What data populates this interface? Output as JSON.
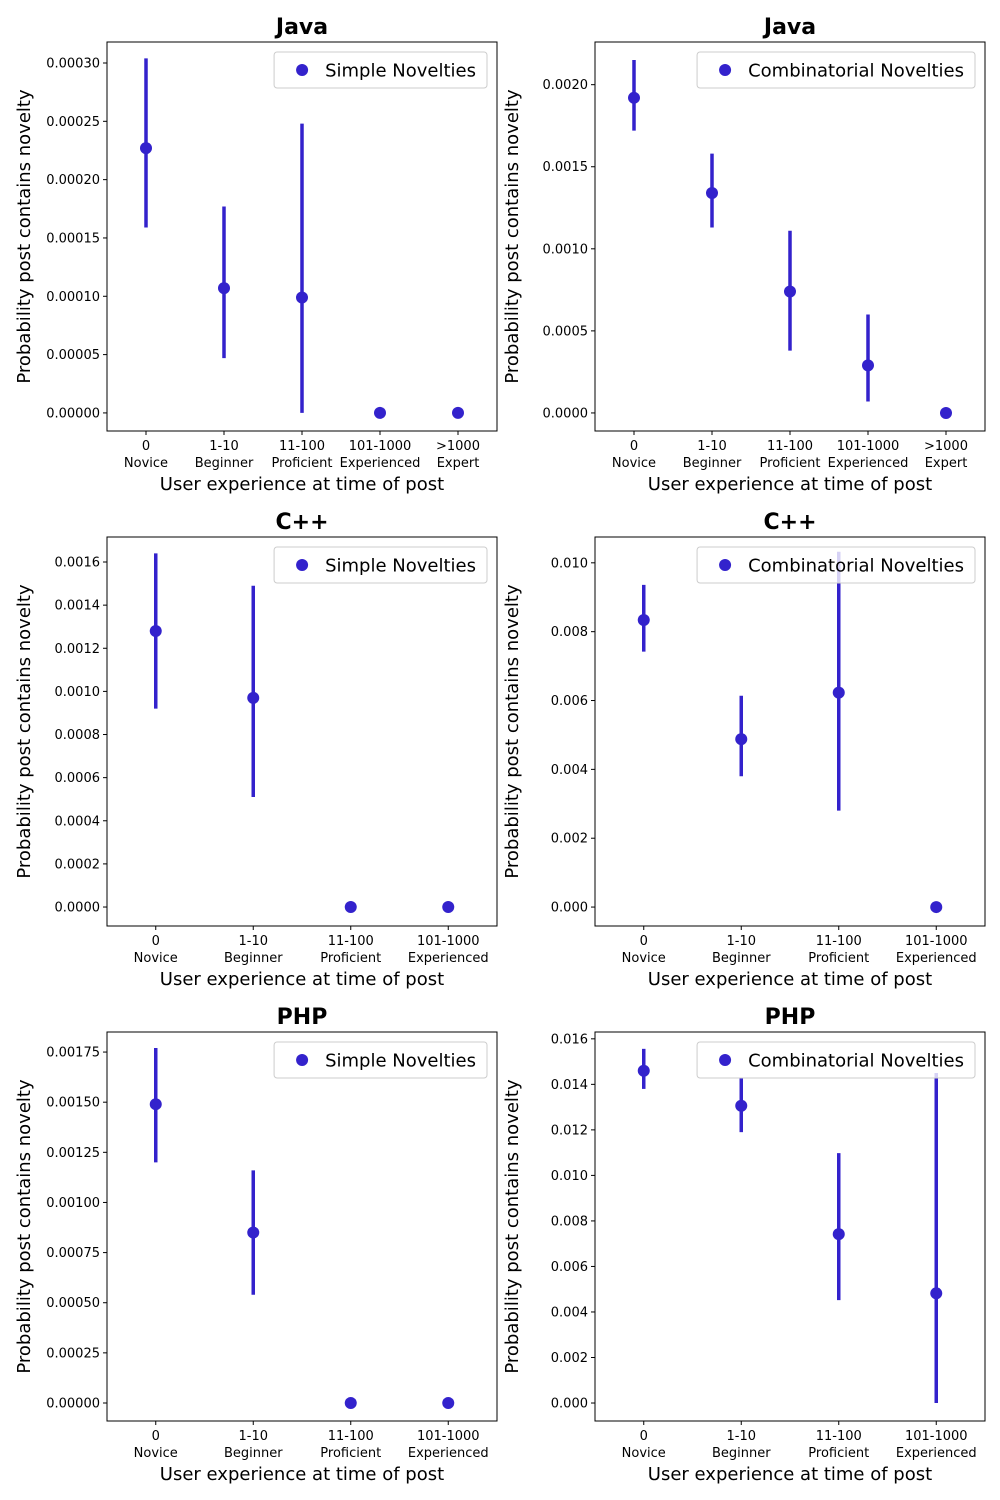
{
  "chart_data": [
    {
      "type": "point",
      "title": "Java",
      "xlabel": "User experience at time of post",
      "ylabel": "Probability post contains novelty",
      "categories": [
        [
          "0",
          "Novice"
        ],
        [
          "1-10",
          "Beginner"
        ],
        [
          "11-100",
          "Proficient"
        ],
        [
          "101-1000",
          "Experienced"
        ],
        [
          ">1000",
          "Expert"
        ]
      ],
      "series": [
        {
          "name": "Simple Novelties",
          "color": "#3322cc",
          "values": [
            0.000227,
            0.000107,
            9.9e-05,
            0,
            0
          ],
          "ci_low": [
            0.000159,
            4.7e-05,
            0,
            null,
            null
          ],
          "ci_high": [
            0.000304,
            0.000177,
            0.000248,
            null,
            null
          ]
        }
      ],
      "ylim": [
        -1.55e-05,
        0.000318
      ],
      "yticks": [
        {
          "value": 0,
          "label": "0.00000"
        },
        {
          "value": 5e-05,
          "label": "0.00005"
        },
        {
          "value": 0.0001,
          "label": "0.00010"
        },
        {
          "value": 0.00015,
          "label": "0.00015"
        },
        {
          "value": 0.0002,
          "label": "0.00020"
        },
        {
          "value": 0.00025,
          "label": "0.00025"
        },
        {
          "value": 0.0003,
          "label": "0.00030"
        }
      ],
      "legend": "upper right"
    },
    {
      "type": "point",
      "title": "Java",
      "xlabel": "User experience at time of post",
      "ylabel": "Probability post contains novelty",
      "categories": [
        [
          "0",
          "Novice"
        ],
        [
          "1-10",
          "Beginner"
        ],
        [
          "11-100",
          "Proficient"
        ],
        [
          "101-1000",
          "Experienced"
        ],
        [
          ">1000",
          "Expert"
        ]
      ],
      "series": [
        {
          "name": "Combinatorial Novelties",
          "color": "#3322cc",
          "values": [
            0.00192,
            0.00134,
            0.00074,
            0.00029,
            0
          ],
          "ci_low": [
            0.00172,
            0.00113,
            0.00038,
            7e-05,
            null
          ],
          "ci_high": [
            0.00215,
            0.00158,
            0.00111,
            0.0006,
            null
          ]
        }
      ],
      "ylim": [
        -0.00011,
        0.00226
      ],
      "yticks": [
        {
          "value": 0,
          "label": "0.0000"
        },
        {
          "value": 0.0005,
          "label": "0.0005"
        },
        {
          "value": 0.001,
          "label": "0.0010"
        },
        {
          "value": 0.0015,
          "label": "0.0015"
        },
        {
          "value": 0.002,
          "label": "0.0020"
        }
      ],
      "legend": "upper right"
    },
    {
      "type": "point",
      "title": "C++",
      "xlabel": "User experience at time of post",
      "ylabel": "Probability post contains novelty",
      "categories": [
        [
          "0",
          "Novice"
        ],
        [
          "1-10",
          "Beginner"
        ],
        [
          "11-100",
          "Proficient"
        ],
        [
          "101-1000",
          "Experienced"
        ]
      ],
      "series": [
        {
          "name": "Simple Novelties",
          "color": "#3322cc",
          "values": [
            0.00128,
            0.00097,
            0,
            0
          ],
          "ci_low": [
            0.00092,
            0.00051,
            null,
            null
          ],
          "ci_high": [
            0.00164,
            0.00149,
            null,
            null
          ]
        }
      ],
      "ylim": [
        -8.8e-05,
        0.001716
      ],
      "yticks": [
        {
          "value": 0,
          "label": "0.0000"
        },
        {
          "value": 0.0002,
          "label": "0.0002"
        },
        {
          "value": 0.0004,
          "label": "0.0004"
        },
        {
          "value": 0.0006,
          "label": "0.0006"
        },
        {
          "value": 0.0008,
          "label": "0.0008"
        },
        {
          "value": 0.001,
          "label": "0.0010"
        },
        {
          "value": 0.0012,
          "label": "0.0012"
        },
        {
          "value": 0.0014,
          "label": "0.0014"
        },
        {
          "value": 0.0016,
          "label": "0.0016"
        }
      ],
      "legend": "upper right"
    },
    {
      "type": "point",
      "title": "C++",
      "xlabel": "User experience at time of post",
      "ylabel": "Probability post contains novelty",
      "categories": [
        [
          "0",
          "Novice"
        ],
        [
          "1-10",
          "Beginner"
        ],
        [
          "11-100",
          "Proficient"
        ],
        [
          "101-1000",
          "Experienced"
        ]
      ],
      "series": [
        {
          "name": "Combinatorial Novelties",
          "color": "#3322cc",
          "values": [
            0.00834,
            0.00488,
            0.00623,
            0
          ],
          "ci_low": [
            0.00742,
            0.0038,
            0.0028,
            null
          ],
          "ci_high": [
            0.00936,
            0.00614,
            0.01032,
            null
          ]
        }
      ],
      "ylim": [
        -0.00055,
        0.01075
      ],
      "yticks": [
        {
          "value": 0,
          "label": "0.000"
        },
        {
          "value": 0.002,
          "label": "0.002"
        },
        {
          "value": 0.004,
          "label": "0.004"
        },
        {
          "value": 0.006,
          "label": "0.006"
        },
        {
          "value": 0.008,
          "label": "0.008"
        },
        {
          "value": 0.01,
          "label": "0.010"
        }
      ],
      "legend": "upper right"
    },
    {
      "type": "point",
      "title": "PHP",
      "xlabel": "User experience at time of post",
      "ylabel": "Probability post contains novelty",
      "categories": [
        [
          "0",
          "Novice"
        ],
        [
          "1-10",
          "Beginner"
        ],
        [
          "11-100",
          "Proficient"
        ],
        [
          "101-1000",
          "Experienced"
        ]
      ],
      "series": [
        {
          "name": "Simple Novelties",
          "color": "#3322cc",
          "values": [
            0.00149,
            0.00085,
            0,
            0
          ],
          "ci_low": [
            0.0012,
            0.00054,
            null,
            null
          ],
          "ci_high": [
            0.00177,
            0.00116,
            null,
            null
          ]
        }
      ],
      "ylim": [
        -8.98e-05,
        0.00185
      ],
      "yticks": [
        {
          "value": 0,
          "label": "0.00000"
        },
        {
          "value": 0.00025,
          "label": "0.00025"
        },
        {
          "value": 0.0005,
          "label": "0.00050"
        },
        {
          "value": 0.00075,
          "label": "0.00075"
        },
        {
          "value": 0.001,
          "label": "0.00100"
        },
        {
          "value": 0.00125,
          "label": "0.00125"
        },
        {
          "value": 0.0015,
          "label": "0.00150"
        },
        {
          "value": 0.00175,
          "label": "0.00175"
        }
      ],
      "legend": "upper right"
    },
    {
      "type": "point",
      "title": "PHP",
      "xlabel": "User experience at time of post",
      "ylabel": "Probability post contains novelty",
      "categories": [
        [
          "0",
          "Novice"
        ],
        [
          "1-10",
          "Beginner"
        ],
        [
          "11-100",
          "Proficient"
        ],
        [
          "101-1000",
          "Experienced"
        ]
      ],
      "series": [
        {
          "name": "Combinatorial Novelties",
          "color": "#3322cc",
          "values": [
            0.0146,
            0.01306,
            0.00742,
            0.00482
          ],
          "ci_low": [
            0.0138,
            0.0119,
            0.00452,
            0
          ],
          "ci_high": [
            0.01556,
            0.0143,
            0.01098,
            0.0145
          ]
        }
      ],
      "ylim": [
        -0.00079,
        0.0163
      ],
      "yticks": [
        {
          "value": 0,
          "label": "0.000"
        },
        {
          "value": 0.002,
          "label": "0.002"
        },
        {
          "value": 0.004,
          "label": "0.004"
        },
        {
          "value": 0.006,
          "label": "0.006"
        },
        {
          "value": 0.008,
          "label": "0.008"
        },
        {
          "value": 0.01,
          "label": "0.010"
        },
        {
          "value": 0.012,
          "label": "0.012"
        },
        {
          "value": 0.014,
          "label": "0.014"
        },
        {
          "value": 0.016,
          "label": "0.016"
        }
      ],
      "legend": "upper right"
    }
  ]
}
